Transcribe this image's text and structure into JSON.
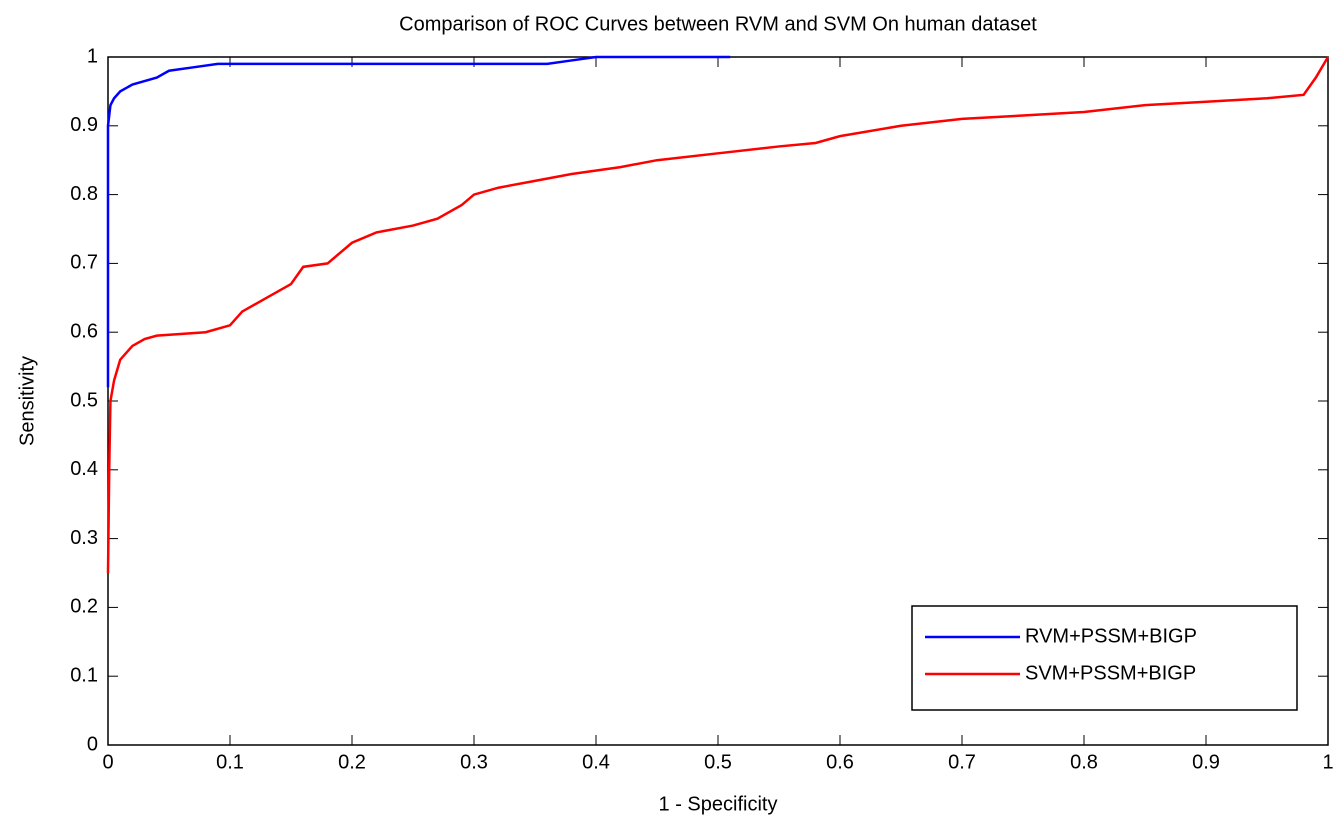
{
  "chart_data": {
    "type": "line",
    "title": "Comparison of ROC Curves between RVM and SVM On human dataset",
    "xlabel": "1 - Specificity",
    "ylabel": "Sensitivity",
    "xlim": [
      0,
      1
    ],
    "ylim": [
      0,
      1
    ],
    "xticks": [
      0,
      0.1,
      0.2,
      0.3,
      0.4,
      0.5,
      0.6,
      0.7,
      0.8,
      0.9,
      1
    ],
    "yticks": [
      0,
      0.1,
      0.2,
      0.3,
      0.4,
      0.5,
      0.6,
      0.7,
      0.8,
      0.9,
      1
    ],
    "grid": false,
    "legend": "lower right",
    "series": [
      {
        "name": "RVM+PSSM+BIGP",
        "color": "#0000ff",
        "x": [
          0,
          0,
          0.002,
          0.005,
          0.01,
          0.02,
          0.03,
          0.04,
          0.05,
          0.07,
          0.09,
          0.2,
          0.36,
          0.38,
          0.4,
          0.51
        ],
        "values": [
          0.52,
          0.9,
          0.93,
          0.94,
          0.95,
          0.96,
          0.965,
          0.97,
          0.98,
          0.985,
          0.99,
          0.99,
          0.99,
          0.995,
          1,
          1
        ]
      },
      {
        "name": "SVM+PSSM+BIGP",
        "color": "#ff0000",
        "x": [
          0,
          0.001,
          0.002,
          0.005,
          0.01,
          0.02,
          0.03,
          0.04,
          0.08,
          0.1,
          0.11,
          0.13,
          0.15,
          0.16,
          0.18,
          0.2,
          0.22,
          0.25,
          0.27,
          0.29,
          0.3,
          0.32,
          0.35,
          0.38,
          0.42,
          0.45,
          0.5,
          0.55,
          0.58,
          0.6,
          0.65,
          0.7,
          0.75,
          0.8,
          0.85,
          0.9,
          0.95,
          0.98,
          0.99,
          1
        ],
        "values": [
          0.25,
          0.4,
          0.5,
          0.53,
          0.56,
          0.58,
          0.59,
          0.595,
          0.6,
          0.61,
          0.63,
          0.65,
          0.67,
          0.695,
          0.7,
          0.73,
          0.745,
          0.755,
          0.765,
          0.785,
          0.8,
          0.81,
          0.82,
          0.83,
          0.84,
          0.85,
          0.86,
          0.87,
          0.875,
          0.885,
          0.9,
          0.91,
          0.915,
          0.92,
          0.93,
          0.935,
          0.94,
          0.945,
          0.97,
          1
        ]
      }
    ]
  }
}
